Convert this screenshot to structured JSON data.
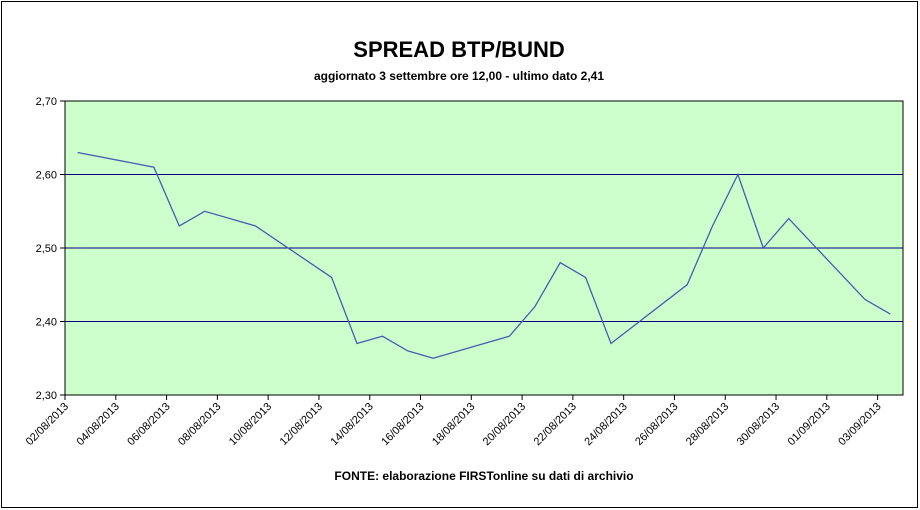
{
  "chart_data": {
    "type": "line",
    "title": "SPREAD BTP/BUND",
    "subtitle": "aggiornato 3 settembre ore 12,00 - ultimo dato 2,41",
    "source": "FONTE: elaborazione FIRSTonline su dati di archivio",
    "x": [
      "02/08/2013",
      "05/08/2013",
      "06/08/2013",
      "07/08/2013",
      "09/08/2013",
      "12/08/2013",
      "13/08/2013",
      "14/08/2013",
      "15/08/2013",
      "16/08/2013",
      "19/08/2013",
      "20/08/2013",
      "21/08/2013",
      "22/08/2013",
      "23/08/2013",
      "26/08/2013",
      "27/08/2013",
      "28/08/2013",
      "29/08/2013",
      "30/08/2013",
      "02/09/2013",
      "03/09/2013"
    ],
    "values": [
      2.63,
      2.61,
      2.53,
      2.55,
      2.53,
      2.46,
      2.37,
      2.38,
      2.36,
      2.35,
      2.38,
      2.42,
      2.48,
      2.46,
      2.37,
      2.45,
      2.53,
      2.6,
      2.5,
      2.54,
      2.43,
      2.41
    ],
    "color": "#3f5fb0",
    "xlim": [
      "02/08/2013",
      "03/09/2013"
    ],
    "xticks": [
      "02/08/2013",
      "04/08/2013",
      "06/08/2013",
      "08/08/2013",
      "10/08/2013",
      "12/08/2013",
      "14/08/2013",
      "16/08/2013",
      "18/08/2013",
      "20/08/2013",
      "22/08/2013",
      "24/08/2013",
      "26/08/2013",
      "28/08/2013",
      "30/08/2013",
      "01/09/2013",
      "03/09/2013"
    ],
    "ylim": [
      2.3,
      2.7
    ],
    "yticks": [
      {
        "value": 2.3,
        "label": "2,30"
      },
      {
        "value": 2.4,
        "label": "2,40"
      },
      {
        "value": 2.5,
        "label": "2,50"
      },
      {
        "value": 2.6,
        "label": "2,60"
      },
      {
        "value": 2.7,
        "label": "2,70"
      }
    ],
    "grid": true,
    "background": "#ccffcc"
  }
}
